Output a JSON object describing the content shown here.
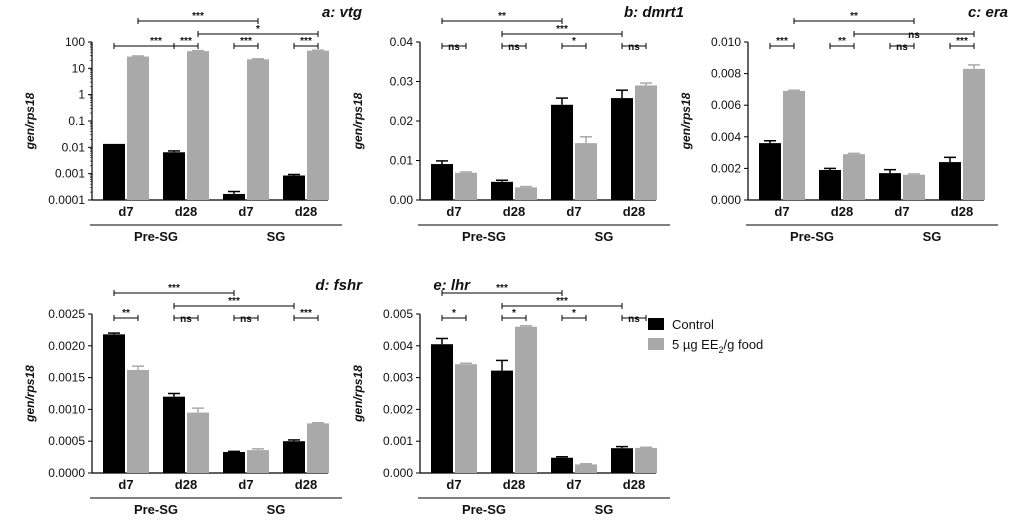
{
  "legend": {
    "control_label": "Control",
    "treated_label": "5 µg EE",
    "treated_subscript": "2",
    "treated_suffix": "/g food",
    "colors": {
      "control": "#000000",
      "treated": "#a9a9a9"
    }
  },
  "chart_data": [
    {
      "type": "bar",
      "title": "a: vtg",
      "ylabel": "gen/rps18",
      "yscale": "log",
      "ylim": [
        0.0001,
        100
      ],
      "yticks": [
        0.0001,
        0.001,
        0.01,
        0.1,
        1,
        10,
        100
      ],
      "ytick_labels": [
        "0.0001",
        "0.001",
        "0.01",
        "0.1",
        "1",
        "10",
        "100"
      ],
      "categories": [
        "d7",
        "d28",
        "d7",
        "d28"
      ],
      "groups": [
        {
          "label": "Pre-SG",
          "categories": [
            0,
            1
          ]
        },
        {
          "label": "SG",
          "categories": [
            2,
            3
          ]
        }
      ],
      "series": [
        {
          "name": "Control",
          "values": [
            0.0135,
            0.0065,
            0.00017,
            0.00085
          ],
          "errors": [
            0.0,
            0.0008,
            4e-05,
            8e-05
          ]
        },
        {
          "name": "5 µg EE2/g food",
          "values": [
            28,
            45,
            22,
            47
          ],
          "errors": [
            1.5,
            2,
            1,
            2
          ]
        }
      ],
      "significance": [
        {
          "from": 0,
          "to": 1,
          "series_from": 0,
          "series_to": 1,
          "label": "***",
          "level": 0
        },
        {
          "from": 1,
          "to": 1,
          "series_from": 0,
          "series_to": 1,
          "label": "***",
          "level": 0
        },
        {
          "from": 2,
          "to": 2,
          "series_from": 0,
          "series_to": 1,
          "label": "***",
          "level": 0
        },
        {
          "from": 3,
          "to": 3,
          "series_from": 0,
          "series_to": 1,
          "label": "***",
          "level": 0
        },
        {
          "from": 0,
          "to": 2,
          "series_from": 1,
          "series_to": 1,
          "label": "***",
          "level": 2
        },
        {
          "from": 1,
          "to": 3,
          "series_from": 1,
          "series_to": 1,
          "label": "*",
          "level": 1
        }
      ]
    },
    {
      "type": "bar",
      "title": "b: dmrt1",
      "ylabel": "gen/rps18",
      "yscale": "linear",
      "ylim": [
        0,
        0.04
      ],
      "yticks": [
        0,
        0.01,
        0.02,
        0.03,
        0.04
      ],
      "ytick_labels": [
        "0.00",
        "0.01",
        "0.02",
        "0.03",
        "0.04"
      ],
      "categories": [
        "d7",
        "d28",
        "d7",
        "d28"
      ],
      "groups": [
        {
          "label": "Pre-SG",
          "categories": [
            0,
            1
          ]
        },
        {
          "label": "SG",
          "categories": [
            2,
            3
          ]
        }
      ],
      "series": [
        {
          "name": "Control",
          "values": [
            0.0091,
            0.0046,
            0.0241,
            0.0258
          ],
          "errors": [
            0.0008,
            0.0004,
            0.0017,
            0.002
          ]
        },
        {
          "name": "5 µg EE2/g food",
          "values": [
            0.0069,
            0.0032,
            0.0144,
            0.029
          ],
          "errors": [
            0.0002,
            0.0002,
            0.0016,
            0.0006
          ]
        }
      ],
      "significance": [
        {
          "from": 0,
          "to": 0,
          "series_from": 0,
          "series_to": 1,
          "label": "ns",
          "level": 0
        },
        {
          "from": 1,
          "to": 1,
          "series_from": 0,
          "series_to": 1,
          "label": "ns",
          "level": 0
        },
        {
          "from": 2,
          "to": 2,
          "series_from": 0,
          "series_to": 1,
          "label": "*",
          "level": 0
        },
        {
          "from": 3,
          "to": 3,
          "series_from": 0,
          "series_to": 1,
          "label": "ns",
          "level": 0
        },
        {
          "from": 0,
          "to": 2,
          "series_from": 0,
          "series_to": 0,
          "label": "**",
          "level": 2
        },
        {
          "from": 1,
          "to": 3,
          "series_from": 0,
          "series_to": 0,
          "label": "***",
          "level": 1
        }
      ]
    },
    {
      "type": "bar",
      "title": "c: era",
      "ylabel": "gen/rps18",
      "yscale": "linear",
      "ylim": [
        0,
        0.01
      ],
      "yticks": [
        0,
        0.002,
        0.004,
        0.006,
        0.008,
        0.01
      ],
      "ytick_labels": [
        "0.000",
        "0.002",
        "0.004",
        "0.006",
        "0.008",
        "0.010"
      ],
      "categories": [
        "d7",
        "d28",
        "d7",
        "d28"
      ],
      "groups": [
        {
          "label": "Pre-SG",
          "categories": [
            0,
            1
          ]
        },
        {
          "label": "SG",
          "categories": [
            2,
            3
          ]
        }
      ],
      "series": [
        {
          "name": "Control",
          "values": [
            0.0036,
            0.0019,
            0.0017,
            0.0024
          ],
          "errors": [
            0.00015,
            0.0001,
            0.00022,
            0.0003
          ]
        },
        {
          "name": "5 µg EE2/g food",
          "values": [
            0.0069,
            0.0029,
            0.0016,
            0.0083
          ],
          "errors": [
            5e-05,
            5e-05,
            5e-05,
            0.00025
          ]
        }
      ],
      "significance": [
        {
          "from": 0,
          "to": 0,
          "series_from": 0,
          "series_to": 1,
          "label": "***",
          "level": 0
        },
        {
          "from": 1,
          "to": 1,
          "series_from": 0,
          "series_to": 1,
          "label": "**",
          "level": 0
        },
        {
          "from": 2,
          "to": 2,
          "series_from": 0,
          "series_to": 1,
          "label": "ns",
          "level": 0
        },
        {
          "from": 3,
          "to": 3,
          "series_from": 0,
          "series_to": 1,
          "label": "***",
          "level": 0
        },
        {
          "from": 0,
          "to": 2,
          "series_from": 1,
          "series_to": 1,
          "label": "**",
          "level": 2
        },
        {
          "from": 1,
          "to": 3,
          "series_from": 1,
          "series_to": 1,
          "label": "ns",
          "level": 1
        }
      ]
    },
    {
      "type": "bar",
      "title": "d: fshr",
      "ylabel": "gen/rps18",
      "yscale": "linear",
      "ylim": [
        0,
        0.0025
      ],
      "yticks": [
        0,
        0.0005,
        0.001,
        0.0015,
        0.002,
        0.0025
      ],
      "ytick_labels": [
        "0.0000",
        "0.0005",
        "0.0010",
        "0.0015",
        "0.0020",
        "0.0025"
      ],
      "categories": [
        "d7",
        "d28",
        "d7",
        "d28"
      ],
      "groups": [
        {
          "label": "Pre-SG",
          "categories": [
            0,
            1
          ]
        },
        {
          "label": "SG",
          "categories": [
            2,
            3
          ]
        }
      ],
      "series": [
        {
          "name": "Control",
          "values": [
            0.00218,
            0.0012,
            0.00033,
            0.0005
          ],
          "errors": [
            2e-05,
            5e-05,
            1e-05,
            2e-05
          ]
        },
        {
          "name": "5 µg EE2/g food",
          "values": [
            0.00162,
            0.00095,
            0.00036,
            0.00078
          ],
          "errors": [
            6e-05,
            7e-05,
            2e-05,
            1e-05
          ]
        }
      ],
      "significance": [
        {
          "from": 0,
          "to": 0,
          "series_from": 0,
          "series_to": 1,
          "label": "**",
          "level": 0
        },
        {
          "from": 1,
          "to": 1,
          "series_from": 0,
          "series_to": 1,
          "label": "ns",
          "level": 0
        },
        {
          "from": 2,
          "to": 2,
          "series_from": 0,
          "series_to": 1,
          "label": "ns",
          "level": 0
        },
        {
          "from": 3,
          "to": 3,
          "series_from": 0,
          "series_to": 1,
          "label": "***",
          "level": 0
        },
        {
          "from": 0,
          "to": 2,
          "series_from": 0,
          "series_to": 0,
          "label": "***",
          "level": 2
        },
        {
          "from": 1,
          "to": 3,
          "series_from": 0,
          "series_to": 0,
          "label": "***",
          "level": 1
        }
      ]
    },
    {
      "type": "bar",
      "title": "e: lhr",
      "ylabel": "gen/rps18",
      "yscale": "linear",
      "ylim": [
        0,
        0.005
      ],
      "yticks": [
        0,
        0.001,
        0.002,
        0.003,
        0.004,
        0.005
      ],
      "ytick_labels": [
        "0.000",
        "0.001",
        "0.002",
        "0.003",
        "0.004",
        "0.005"
      ],
      "categories": [
        "d7",
        "d28",
        "d7",
        "d28"
      ],
      "groups": [
        {
          "label": "Pre-SG",
          "categories": [
            0,
            1
          ]
        },
        {
          "label": "SG",
          "categories": [
            2,
            3
          ]
        }
      ],
      "series": [
        {
          "name": "Control",
          "values": [
            0.00405,
            0.00322,
            0.00048,
            0.00078
          ],
          "errors": [
            0.00018,
            0.00032,
            3e-05,
            5e-05
          ]
        },
        {
          "name": "5 µg EE2/g food",
          "values": [
            0.00342,
            0.0046,
            0.00027,
            0.00079
          ],
          "errors": [
            3e-05,
            3e-05,
            2e-05,
            2e-05
          ]
        }
      ],
      "significance": [
        {
          "from": 0,
          "to": 0,
          "series_from": 0,
          "series_to": 1,
          "label": "*",
          "level": 0
        },
        {
          "from": 1,
          "to": 1,
          "series_from": 0,
          "series_to": 1,
          "label": "*",
          "level": 0
        },
        {
          "from": 2,
          "to": 2,
          "series_from": 0,
          "series_to": 1,
          "label": "*",
          "level": 0
        },
        {
          "from": 3,
          "to": 3,
          "series_from": 0,
          "series_to": 1,
          "label": "ns",
          "level": 0
        },
        {
          "from": 0,
          "to": 2,
          "series_from": 0,
          "series_to": 0,
          "label": "***",
          "level": 2
        },
        {
          "from": 1,
          "to": 3,
          "series_from": 0,
          "series_to": 0,
          "label": "***",
          "level": 1
        }
      ]
    }
  ]
}
